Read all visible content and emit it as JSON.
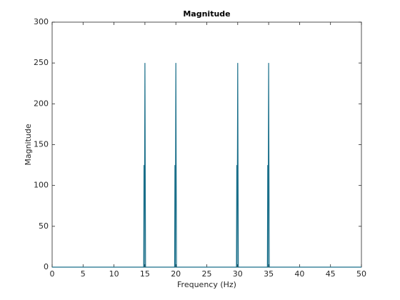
{
  "chart_data": {
    "type": "line",
    "title": "Magnitude",
    "xlabel": "Frequency (Hz)",
    "ylabel": "Magnitude",
    "x": [
      0,
      14.8,
      14.85,
      14.9,
      15,
      15.1,
      19.8,
      19.85,
      19.9,
      20,
      20.1,
      29.8,
      29.85,
      29.9,
      30,
      30.1,
      34.8,
      34.85,
      34.9,
      35,
      35.1,
      50
    ],
    "series": [
      {
        "name": "Magnitude",
        "color": "#1a6f8a",
        "values": [
          0,
          0,
          125,
          0,
          250,
          0,
          0,
          125,
          0,
          250,
          0,
          0,
          125,
          0,
          250,
          0,
          0,
          125,
          0,
          250,
          0,
          0
        ]
      }
    ],
    "xlim": [
      0,
      50
    ],
    "xticks": [
      0,
      5,
      10,
      15,
      20,
      25,
      30,
      35,
      40,
      45,
      50
    ],
    "ylim": [
      0,
      300
    ],
    "yticks": [
      0,
      50,
      100,
      150,
      200,
      250,
      300
    ],
    "grid": false
  }
}
